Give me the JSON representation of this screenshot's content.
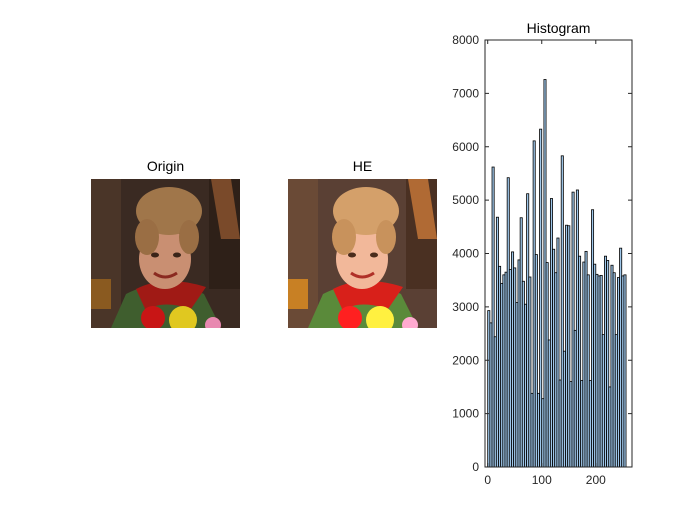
{
  "figure": {
    "panels": [
      {
        "title": "Origin"
      },
      {
        "title": "HE"
      }
    ]
  },
  "chart_data": {
    "type": "bar",
    "title": "Histogram",
    "xlabel": "",
    "ylabel": "",
    "xlim": [
      -5,
      267
    ],
    "ylim": [
      0,
      8000
    ],
    "xticks": [
      0,
      100,
      200
    ],
    "yticks": [
      0,
      1000,
      2000,
      3000,
      4000,
      5000,
      6000,
      7000,
      8000
    ],
    "grid": false,
    "bar_color": "#9fc7ea",
    "edge_color": "#000000",
    "bin_width": 4,
    "x": [
      2,
      6,
      10,
      14,
      18,
      22,
      26,
      30,
      34,
      38,
      42,
      46,
      50,
      54,
      58,
      62,
      66,
      70,
      74,
      78,
      82,
      86,
      90,
      94,
      98,
      102,
      106,
      110,
      114,
      118,
      122,
      126,
      130,
      134,
      138,
      142,
      146,
      150,
      154,
      158,
      162,
      166,
      170,
      174,
      178,
      182,
      186,
      190,
      194,
      198,
      202,
      206,
      210,
      214,
      218,
      222,
      226,
      230,
      234,
      238,
      242,
      246,
      250,
      254
    ],
    "values": [
      2930,
      2700,
      5620,
      2440,
      4680,
      3760,
      3440,
      3600,
      3650,
      5420,
      3700,
      4030,
      3730,
      3080,
      3880,
      4670,
      3480,
      3050,
      5120,
      3560,
      1380,
      6110,
      3980,
      1380,
      6330,
      1280,
      7260,
      3830,
      2380,
      5030,
      4080,
      3640,
      4290,
      1630,
      5830,
      2170,
      4530,
      4520,
      1600,
      5150,
      2560,
      5190,
      3950,
      1620,
      3840,
      4040,
      3600,
      1620,
      4820,
      3800,
      3610,
      3580,
      3590,
      2480,
      3950,
      3870,
      1500,
      3780,
      3640,
      2480,
      3550,
      4100,
      3580,
      3600
    ]
  }
}
